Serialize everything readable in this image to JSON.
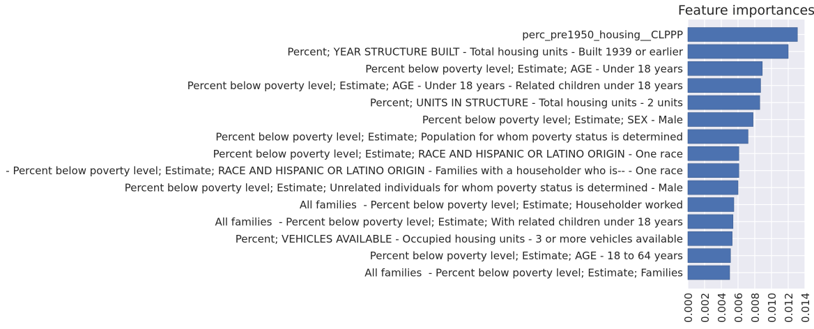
{
  "chart_data": {
    "type": "bar",
    "orientation": "horizontal",
    "title": "Feature importances",
    "xlabel": "",
    "ylabel": "",
    "xlim": [
      0,
      0.014
    ],
    "xticks": [
      "0.000",
      "0.002",
      "0.004",
      "0.006",
      "0.008",
      "0.010",
      "0.012",
      "0.014"
    ],
    "grid": true,
    "legend": "none",
    "colors": {
      "bar": "#4c72b0",
      "plot_background": "#eaeaf2",
      "grid": "#ffffff",
      "text": "#262626"
    },
    "categories": [
      "perc_pre1950_housing__CLPPP",
      "Percent; YEAR STRUCTURE BUILT - Total housing units - Built 1939 or earlier",
      "Percent below poverty level; Estimate; AGE - Under 18 years",
      "Percent below poverty level; Estimate; AGE - Under 18 years - Related children under 18 years",
      "Percent; UNITS IN STRUCTURE - Total housing units - 2 units",
      "Percent below poverty level; Estimate; SEX - Male",
      "Percent below poverty level; Estimate; Population for whom poverty status is determined",
      "Percent below poverty level; Estimate; RACE AND HISPANIC OR LATINO ORIGIN - One race",
      "All families  - Percent below poverty level; Estimate; RACE AND HISPANIC OR LATINO ORIGIN - Families with a householder who is-- - One race",
      "Percent below poverty level; Estimate; Unrelated individuals for whom poverty status is determined - Male",
      "All families  - Percent below poverty level; Estimate; Householder worked",
      "All families  - Percent below poverty level; Estimate; With related children under 18 years",
      "Percent; VEHICLES AVAILABLE - Occupied housing units - 3 or more vehicles available",
      "Percent below poverty level; Estimate; AGE - 18 to 64 years",
      "All families  - Percent below poverty level; Estimate; Families"
    ],
    "values": [
      0.0131,
      0.012,
      0.0089,
      0.0087,
      0.0086,
      0.0078,
      0.0072,
      0.0061,
      0.0061,
      0.006,
      0.0055,
      0.0054,
      0.0053,
      0.0051,
      0.005
    ]
  }
}
